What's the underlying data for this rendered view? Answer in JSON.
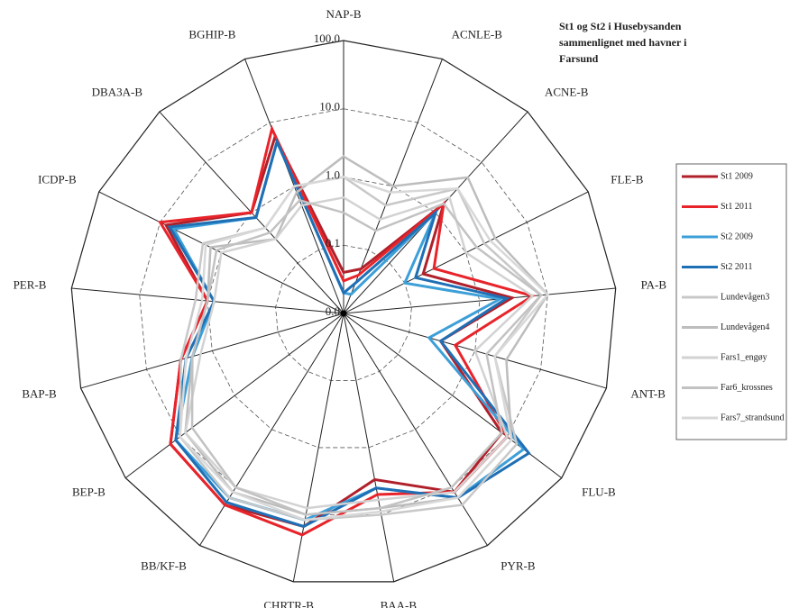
{
  "chart_data": {
    "type": "radar",
    "title": "St1 og St2 i Husebysanden sammenlignet med havner i Farsund",
    "categories": [
      "NAP-B",
      "ACNLE-B",
      "ACNE-B",
      "FLE-B",
      "PA-B",
      "ANT-B",
      "FLU-B",
      "PYR-B",
      "BAA-B",
      "CHRTR-B",
      "BB/KF-B",
      "BEP-B",
      "BAP-B",
      "PER-B",
      "ICDP-B",
      "DBA3A-B",
      "BGHIP-B"
    ],
    "log_scale": true,
    "rlim": [
      0.01,
      100
    ],
    "rticks": [
      {
        "value": 0.01,
        "label": "0.0"
      },
      {
        "value": 0.1,
        "label": "0.1"
      },
      {
        "value": 1,
        "label": "1.0"
      },
      {
        "value": 10,
        "label": "10.0"
      },
      {
        "value": 100,
        "label": "100.0"
      }
    ],
    "series": [
      {
        "name": "St1 2009",
        "color": "#b0202a",
        "values": [
          0.04,
          0.05,
          1.5,
          0.2,
          3,
          0.3,
          8,
          12,
          3,
          15,
          20,
          15,
          3,
          1,
          8,
          1,
          6
        ]
      },
      {
        "name": "St1 2011",
        "color": "#e8232a",
        "values": [
          0.03,
          0.04,
          1.5,
          0.3,
          6,
          0.5,
          10,
          12,
          5,
          20,
          20,
          15,
          3,
          1,
          10,
          1,
          8
        ]
      },
      {
        "name": "St2 2009",
        "color": "#3d9fd8",
        "values": [
          0.02,
          0.02,
          1,
          0.1,
          2,
          0.2,
          20,
          15,
          4,
          12,
          15,
          12,
          2,
          0.8,
          6,
          0.8,
          5
        ]
      },
      {
        "name": "St2 2011",
        "color": "#1f6fb5",
        "values": [
          0.02,
          0.03,
          1,
          0.15,
          2.5,
          0.3,
          25,
          15,
          4,
          15,
          18,
          12,
          2.5,
          0.8,
          7,
          0.8,
          5
        ]
      },
      {
        "name": "Lundevågen3",
        "color": "#c8c8c8",
        "values": [
          1,
          0.5,
          3,
          2,
          8,
          2,
          15,
          20,
          10,
          12,
          15,
          10,
          3,
          1.5,
          2,
          0.5,
          1
        ]
      },
      {
        "name": "Lundevågen4",
        "color": "#bdbdbd",
        "values": [
          2,
          1,
          5,
          3,
          10,
          3,
          12,
          15,
          8,
          10,
          12,
          8,
          2,
          1,
          1.5,
          0.3,
          0.8
        ]
      },
      {
        "name": "Fars1_engøy",
        "color": "#d2d2d2",
        "values": [
          0.5,
          0.3,
          2,
          1,
          6,
          1,
          10,
          12,
          6,
          8,
          10,
          8,
          1.5,
          0.8,
          1,
          0.3,
          0.5
        ]
      },
      {
        "name": "Far6_krossnes",
        "color": "#c2c2c2",
        "values": [
          0.3,
          0.2,
          1.5,
          1.5,
          8,
          1.5,
          8,
          10,
          8,
          10,
          10,
          6,
          2,
          1,
          1.2,
          0.4,
          0.6
        ]
      },
      {
        "name": "Fars7_strandsund",
        "color": "#d8d8d8",
        "values": [
          1,
          0.8,
          3,
          2.5,
          10,
          2,
          12,
          15,
          9,
          12,
          12,
          10,
          2.5,
          1.2,
          1.8,
          0.5,
          1
        ]
      }
    ]
  }
}
